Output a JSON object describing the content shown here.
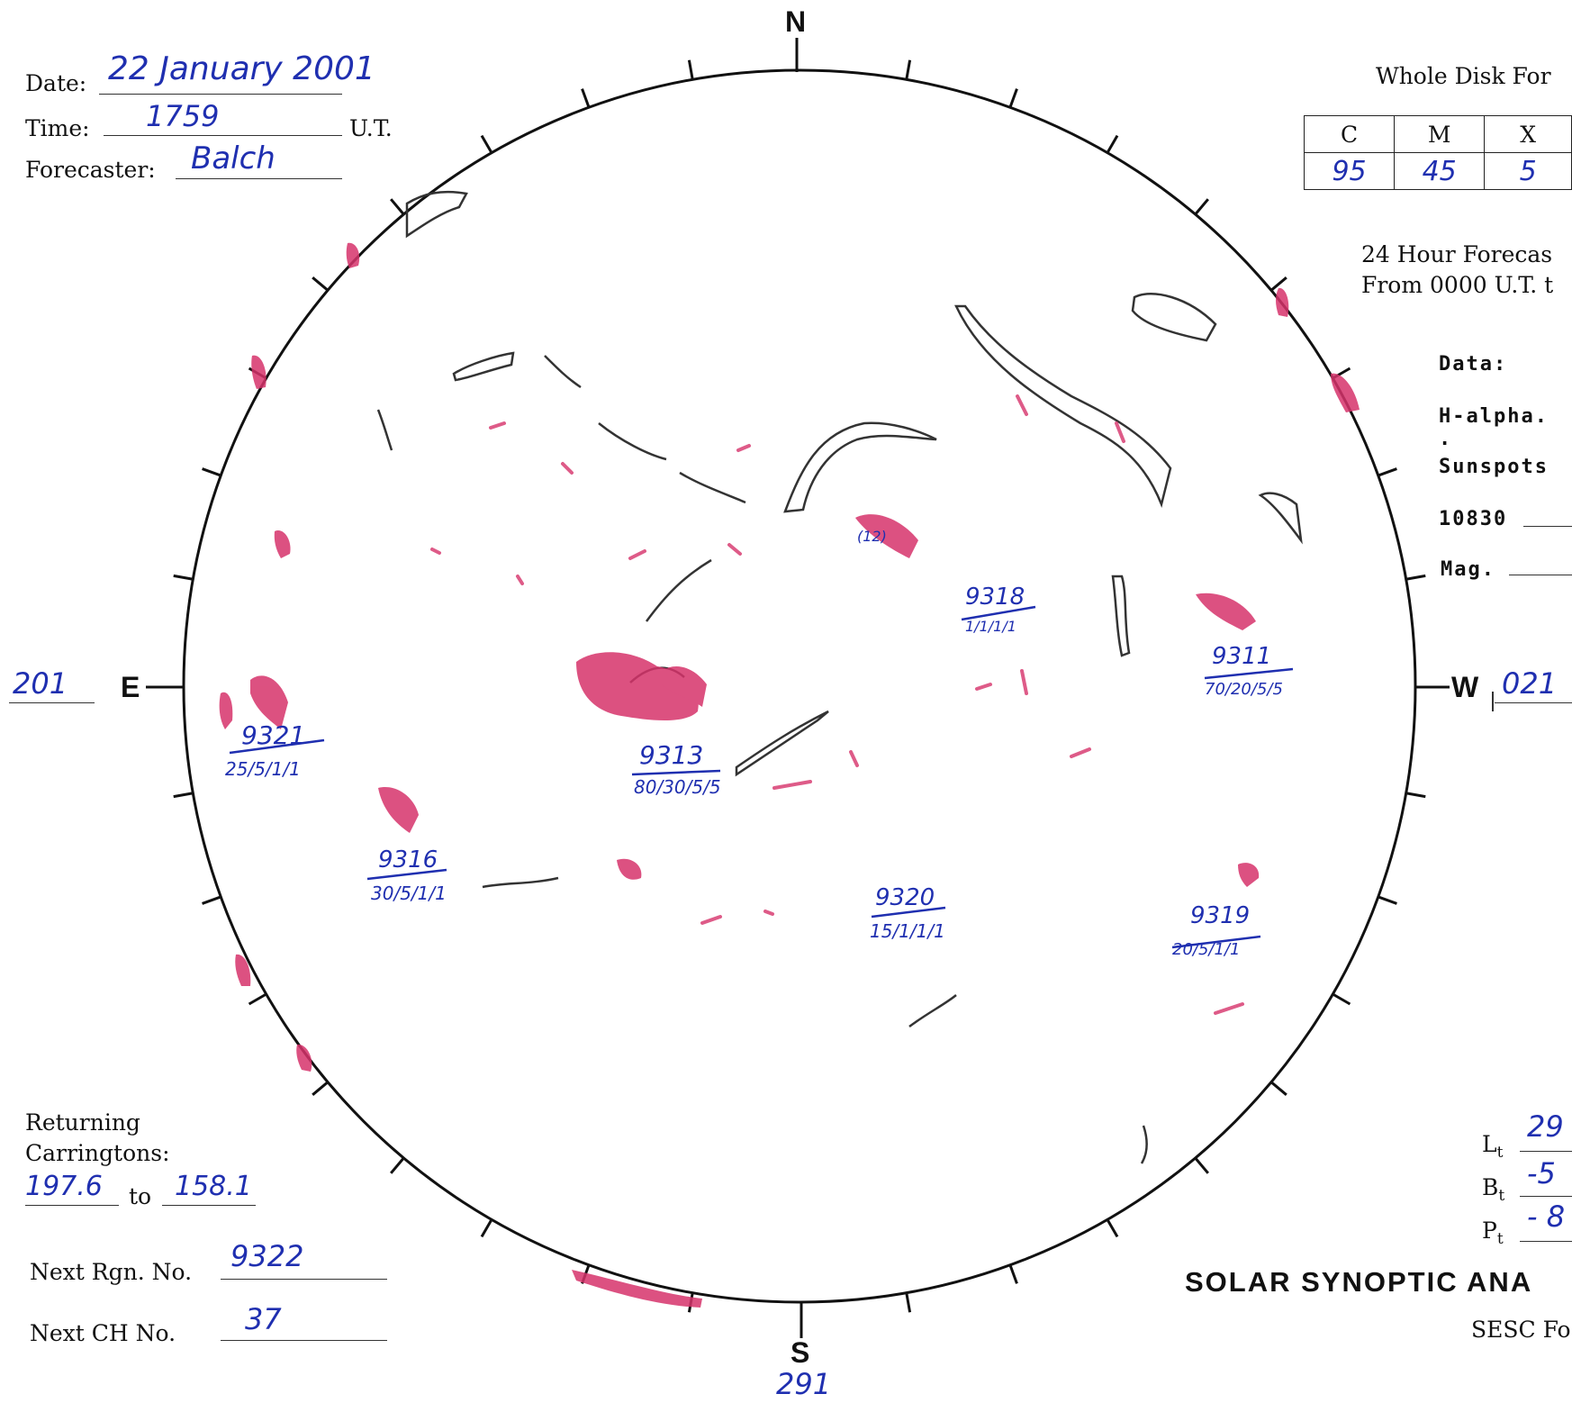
{
  "header": {
    "date_label": "Date:",
    "date_value": "22 January 2001",
    "time_label": "Time:",
    "time_value": "1759",
    "time_unit": "U.T.",
    "forecaster_label": "Forecaster:",
    "forecaster_value": "Balch"
  },
  "forecast_box": {
    "title": "Whole Disk For",
    "columns": [
      "C",
      "M",
      "X"
    ],
    "values": [
      "95",
      "45",
      "5"
    ],
    "note_line1": "24 Hour Forecas",
    "note_line2": "From 0000 U.T. t"
  },
  "data_panel": {
    "data_label": "Data:",
    "halpha_label": "H-alpha. .",
    "sunspots_label": "Sunspots",
    "he10830_label": "10830",
    "mag_label": "Mag."
  },
  "compass": {
    "north": "N",
    "south": "S",
    "east": "E",
    "west": "W",
    "east_value": "201",
    "west_value": "021",
    "south_value": "291"
  },
  "regions": [
    {
      "number": "9321",
      "probs": "25/5/1/1"
    },
    {
      "number": "9316",
      "probs": "30/5/1/1"
    },
    {
      "number": "9313",
      "probs": "80/30/5/5"
    },
    {
      "number": "9318",
      "probs": "1/1/1/1"
    },
    {
      "number": "9311",
      "probs": "70/20/5/5"
    },
    {
      "number": "9320",
      "probs": "15/1/1/1"
    },
    {
      "number": "9319",
      "probs": "20/5/1/1"
    }
  ],
  "coronal_hole_label": "(12)",
  "returning": {
    "label_line1": "Returning",
    "label_line2": "Carringtons:",
    "from_value": "197.6",
    "to_label": "to",
    "to_value": "158.1"
  },
  "next": {
    "rgn_label": "Next Rgn. No.",
    "rgn_value": "9322",
    "ch_label": "Next CH No.",
    "ch_value": "37"
  },
  "orientation": {
    "lt_label": "L",
    "lt_sub": "t",
    "lt_value": "29",
    "bt_label": "B",
    "bt_sub": "t",
    "bt_value": "-5",
    "pt_label": "P",
    "pt_sub": "t",
    "pt_value": "- 8"
  },
  "footer": {
    "title": "SOLAR SYNOPTIC ANA",
    "subtitle": "SESC Fo"
  },
  "colors": {
    "plage": "#d6336b",
    "filament": "#333333",
    "handwriting": "#1f2fb0"
  }
}
